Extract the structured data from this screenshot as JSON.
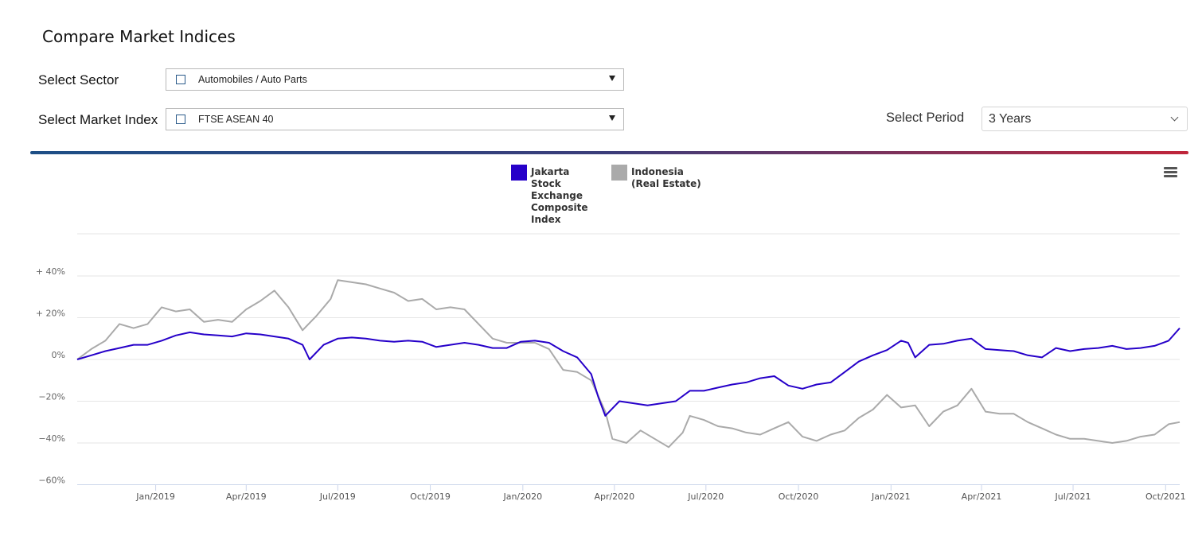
{
  "header": {
    "title": "Compare Market Indices"
  },
  "filters": {
    "sector_label": "Select Sector",
    "sector_value": "Automobiles / Auto Parts",
    "index_label": "Select Market Index",
    "index_value": "FTSE ASEAN 40",
    "period_label": "Select Period",
    "period_value": "3 Years"
  },
  "colors": {
    "series1": "#2600c9",
    "series2": "#aaaaaa",
    "divider_start": "#1d4f86",
    "divider_end": "#c0253a"
  },
  "icons": {
    "menu": "hamburger-menu-icon",
    "dropdown": "caret-down-icon",
    "checkbox": "checkbox-icon"
  },
  "chart_data": {
    "type": "line",
    "title": "",
    "xlabel": "",
    "ylabel": "",
    "ylim": [
      -60,
      60
    ],
    "y_ticks": [
      {
        "value": 40,
        "label": "+ 40%"
      },
      {
        "value": 20,
        "label": "+ 20%"
      },
      {
        "value": 0,
        "label": "0%"
      },
      {
        "value": -20,
        "label": "−20%"
      },
      {
        "value": -40,
        "label": "−40%"
      },
      {
        "value": -60,
        "label": "−60%"
      }
    ],
    "x_range": [
      "2018-10-15",
      "2021-10-15"
    ],
    "x_ticks": [
      {
        "date": "2019-01-01",
        "label": "Jan/2019"
      },
      {
        "date": "2019-04-01",
        "label": "Apr/2019"
      },
      {
        "date": "2019-07-01",
        "label": "Jul/2019"
      },
      {
        "date": "2019-10-01",
        "label": "Oct/2019"
      },
      {
        "date": "2020-01-01",
        "label": "Jan/2020"
      },
      {
        "date": "2020-04-01",
        "label": "Apr/2020"
      },
      {
        "date": "2020-07-01",
        "label": "Jul/2020"
      },
      {
        "date": "2020-10-01",
        "label": "Oct/2020"
      },
      {
        "date": "2021-01-01",
        "label": "Jan/2021"
      },
      {
        "date": "2021-04-01",
        "label": "Apr/2021"
      },
      {
        "date": "2021-07-01",
        "label": "Jul/2021"
      },
      {
        "date": "2021-10-01",
        "label": "Oct/2021"
      }
    ],
    "legend_placement": "top-center",
    "grid": true,
    "series": [
      {
        "name": "Jakarta Stock Exchange Composite Index",
        "color": "#2600c9",
        "points": [
          [
            "2018-10-15",
            0
          ],
          [
            "2018-10-29",
            2
          ],
          [
            "2018-11-12",
            4
          ],
          [
            "2018-11-26",
            5.5
          ],
          [
            "2018-12-10",
            7
          ],
          [
            "2018-12-24",
            7
          ],
          [
            "2019-01-07",
            9
          ],
          [
            "2019-01-21",
            11.5
          ],
          [
            "2019-02-04",
            13
          ],
          [
            "2019-02-18",
            12
          ],
          [
            "2019-03-04",
            11.5
          ],
          [
            "2019-03-18",
            11
          ],
          [
            "2019-04-01",
            12.5
          ],
          [
            "2019-04-15",
            12
          ],
          [
            "2019-04-29",
            11
          ],
          [
            "2019-05-13",
            10
          ],
          [
            "2019-05-27",
            7
          ],
          [
            "2019-06-03",
            0
          ],
          [
            "2019-06-17",
            7
          ],
          [
            "2019-07-01",
            10
          ],
          [
            "2019-07-15",
            10.5
          ],
          [
            "2019-07-29",
            10
          ],
          [
            "2019-08-12",
            9
          ],
          [
            "2019-08-26",
            8.5
          ],
          [
            "2019-09-09",
            9
          ],
          [
            "2019-09-23",
            8.5
          ],
          [
            "2019-10-07",
            6
          ],
          [
            "2019-10-21",
            7
          ],
          [
            "2019-11-04",
            8
          ],
          [
            "2019-11-18",
            7
          ],
          [
            "2019-12-02",
            5.5
          ],
          [
            "2019-12-16",
            5.5
          ],
          [
            "2019-12-30",
            8.5
          ],
          [
            "2020-01-13",
            9
          ],
          [
            "2020-01-27",
            8
          ],
          [
            "2020-02-10",
            4
          ],
          [
            "2020-02-24",
            1
          ],
          [
            "2020-03-09",
            -7
          ],
          [
            "2020-03-16",
            -18
          ],
          [
            "2020-03-23",
            -27
          ],
          [
            "2020-04-06",
            -20
          ],
          [
            "2020-04-20",
            -21
          ],
          [
            "2020-05-04",
            -22
          ],
          [
            "2020-05-18",
            -21
          ],
          [
            "2020-06-01",
            -20
          ],
          [
            "2020-06-15",
            -15
          ],
          [
            "2020-06-29",
            -15
          ],
          [
            "2020-07-13",
            -13.5
          ],
          [
            "2020-07-27",
            -12
          ],
          [
            "2020-08-10",
            -11
          ],
          [
            "2020-08-24",
            -9
          ],
          [
            "2020-09-07",
            -8
          ],
          [
            "2020-09-21",
            -12.5
          ],
          [
            "2020-10-05",
            -14
          ],
          [
            "2020-10-19",
            -12
          ],
          [
            "2020-11-02",
            -11
          ],
          [
            "2020-11-16",
            -6
          ],
          [
            "2020-11-30",
            -1
          ],
          [
            "2020-12-14",
            2
          ],
          [
            "2020-12-28",
            4.5
          ],
          [
            "2021-01-11",
            9
          ],
          [
            "2021-01-18",
            8
          ],
          [
            "2021-01-25",
            1
          ],
          [
            "2021-02-08",
            7
          ],
          [
            "2021-02-22",
            7.5
          ],
          [
            "2021-03-08",
            9
          ],
          [
            "2021-03-22",
            10
          ],
          [
            "2021-04-05",
            5
          ],
          [
            "2021-04-19",
            4.5
          ],
          [
            "2021-05-03",
            4
          ],
          [
            "2021-05-17",
            2
          ],
          [
            "2021-05-31",
            1
          ],
          [
            "2021-06-14",
            5.5
          ],
          [
            "2021-06-28",
            4
          ],
          [
            "2021-07-12",
            5
          ],
          [
            "2021-07-26",
            5.5
          ],
          [
            "2021-08-09",
            6.5
          ],
          [
            "2021-08-23",
            5
          ],
          [
            "2021-09-06",
            5.5
          ],
          [
            "2021-09-20",
            6.5
          ],
          [
            "2021-10-04",
            9
          ],
          [
            "2021-10-15",
            15
          ]
        ]
      },
      {
        "name": "Indonesia (Real Estate)",
        "color": "#aaaaaa",
        "points": [
          [
            "2018-10-15",
            0
          ],
          [
            "2018-10-29",
            5
          ],
          [
            "2018-11-12",
            9
          ],
          [
            "2018-11-26",
            17
          ],
          [
            "2018-12-10",
            15
          ],
          [
            "2018-12-24",
            17
          ],
          [
            "2019-01-07",
            25
          ],
          [
            "2019-01-21",
            23
          ],
          [
            "2019-02-04",
            24
          ],
          [
            "2019-02-18",
            18
          ],
          [
            "2019-03-04",
            19
          ],
          [
            "2019-03-18",
            18
          ],
          [
            "2019-04-01",
            24
          ],
          [
            "2019-04-15",
            28
          ],
          [
            "2019-04-29",
            33
          ],
          [
            "2019-05-13",
            25
          ],
          [
            "2019-05-27",
            14
          ],
          [
            "2019-06-10",
            21
          ],
          [
            "2019-06-24",
            29
          ],
          [
            "2019-07-01",
            38
          ],
          [
            "2019-07-15",
            37
          ],
          [
            "2019-07-29",
            36
          ],
          [
            "2019-08-12",
            34
          ],
          [
            "2019-08-26",
            32
          ],
          [
            "2019-09-09",
            28
          ],
          [
            "2019-09-23",
            29
          ],
          [
            "2019-10-07",
            24
          ],
          [
            "2019-10-21",
            25
          ],
          [
            "2019-11-04",
            24
          ],
          [
            "2019-11-18",
            17
          ],
          [
            "2019-12-02",
            10
          ],
          [
            "2019-12-16",
            8
          ],
          [
            "2019-12-30",
            8
          ],
          [
            "2020-01-13",
            8
          ],
          [
            "2020-01-27",
            5
          ],
          [
            "2020-02-10",
            -5
          ],
          [
            "2020-02-24",
            -6
          ],
          [
            "2020-03-09",
            -10
          ],
          [
            "2020-03-23",
            -25
          ],
          [
            "2020-03-30",
            -38
          ],
          [
            "2020-04-13",
            -40
          ],
          [
            "2020-04-27",
            -34
          ],
          [
            "2020-05-11",
            -38
          ],
          [
            "2020-05-25",
            -42
          ],
          [
            "2020-06-08",
            -35
          ],
          [
            "2020-06-15",
            -27
          ],
          [
            "2020-06-29",
            -29
          ],
          [
            "2020-07-13",
            -32
          ],
          [
            "2020-07-27",
            -33
          ],
          [
            "2020-08-10",
            -35
          ],
          [
            "2020-08-24",
            -36
          ],
          [
            "2020-09-07",
            -33
          ],
          [
            "2020-09-21",
            -30
          ],
          [
            "2020-10-05",
            -37
          ],
          [
            "2020-10-19",
            -39
          ],
          [
            "2020-11-02",
            -36
          ],
          [
            "2020-11-16",
            -34
          ],
          [
            "2020-11-30",
            -28
          ],
          [
            "2020-12-14",
            -24
          ],
          [
            "2020-12-28",
            -17
          ],
          [
            "2021-01-11",
            -23
          ],
          [
            "2021-01-25",
            -22
          ],
          [
            "2021-02-08",
            -32
          ],
          [
            "2021-02-22",
            -25
          ],
          [
            "2021-03-08",
            -22
          ],
          [
            "2021-03-22",
            -14
          ],
          [
            "2021-04-05",
            -25
          ],
          [
            "2021-04-19",
            -26
          ],
          [
            "2021-05-03",
            -26
          ],
          [
            "2021-05-17",
            -30
          ],
          [
            "2021-05-31",
            -33
          ],
          [
            "2021-06-14",
            -36
          ],
          [
            "2021-06-28",
            -38
          ],
          [
            "2021-07-12",
            -38
          ],
          [
            "2021-07-26",
            -39
          ],
          [
            "2021-08-09",
            -40
          ],
          [
            "2021-08-23",
            -39
          ],
          [
            "2021-09-06",
            -37
          ],
          [
            "2021-09-20",
            -36
          ],
          [
            "2021-10-04",
            -31
          ],
          [
            "2021-10-15",
            -30
          ]
        ]
      }
    ]
  }
}
